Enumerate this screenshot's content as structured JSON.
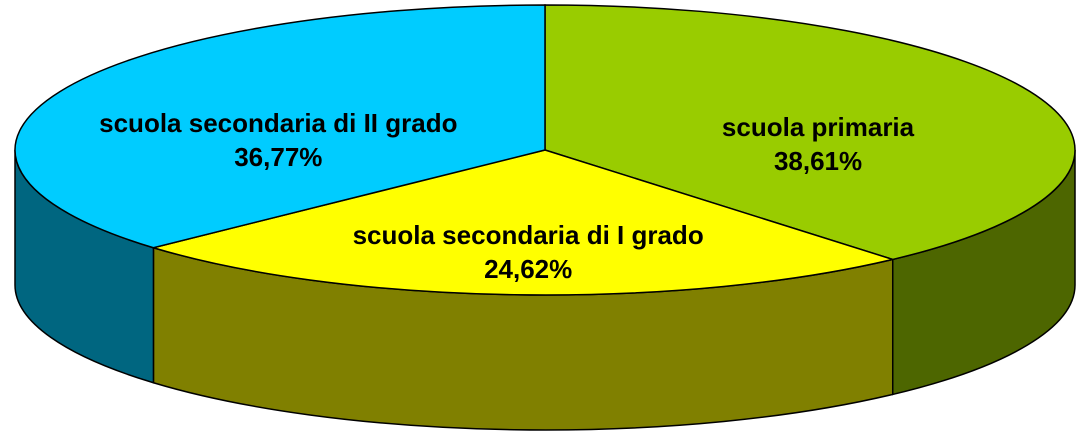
{
  "chart_data": {
    "type": "pie3d",
    "categories": [
      "scuola primaria",
      "scuola secondaria di I grado",
      "scuola secondaria di II grado"
    ],
    "values": [
      38.61,
      24.62,
      36.77
    ],
    "value_labels": [
      "38,61%",
      "24,62%",
      "36,77%"
    ],
    "colors": [
      "#99cc00",
      "#ffff00",
      "#00ccff"
    ],
    "side_colors": [
      "#4d6600",
      "#808000",
      "#006680"
    ]
  }
}
